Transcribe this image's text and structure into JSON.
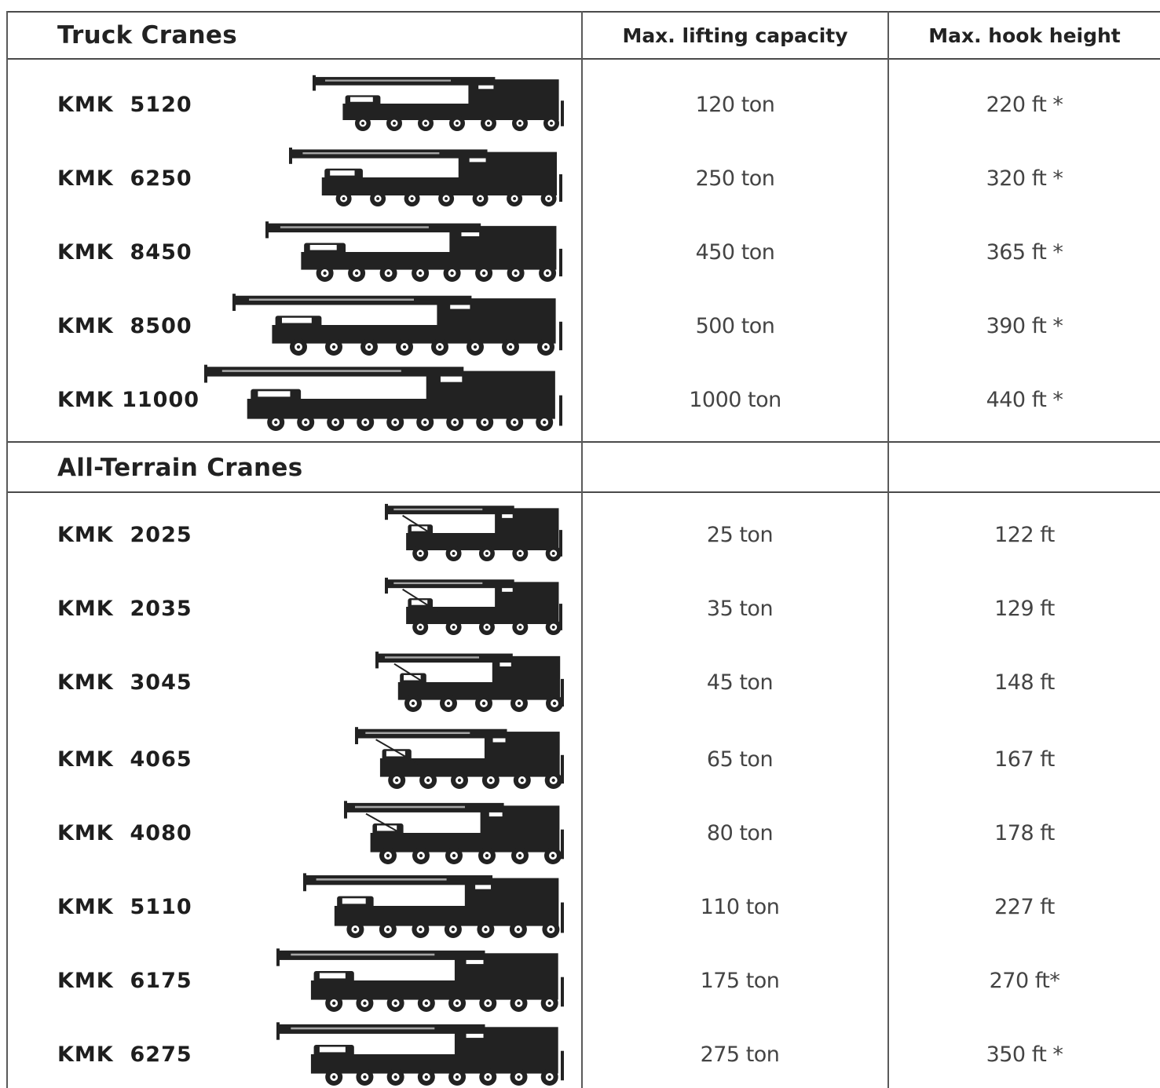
{
  "columns": {
    "capacity_header": "Max. lifting capacity",
    "height_header": "Max. hook height"
  },
  "sections": [
    {
      "title": "Truck Cranes",
      "rows": [
        {
          "model": "KMK  5120",
          "capacity": "120 ton",
          "height": "220 ft *"
        },
        {
          "model": "KMK  6250",
          "capacity": "250 ton",
          "height": "320 ft *"
        },
        {
          "model": "KMK  8450",
          "capacity": "450 ton",
          "height": "365 ft *"
        },
        {
          "model": "KMK  8500",
          "capacity": "500 ton",
          "height": "390 ft *"
        },
        {
          "model": "KMK 11000",
          "capacity": "1000 ton",
          "height": "440 ft *"
        }
      ]
    },
    {
      "title": "All-Terrain Cranes",
      "rows": [
        {
          "model": "KMK  2025",
          "capacity": "25 ton",
          "height": "122 ft"
        },
        {
          "model": "KMK  2035",
          "capacity": "35 ton",
          "height": "129 ft"
        },
        {
          "model": "KMK  3045",
          "capacity": "45 ton",
          "height": "148 ft"
        },
        {
          "model": "KMK  4065",
          "capacity": "65 ton",
          "height": "167 ft"
        },
        {
          "model": "KMK  4080",
          "capacity": "80 ton",
          "height": "178 ft"
        },
        {
          "model": "KMK  5110",
          "capacity": "110 ton",
          "height": "227 ft"
        },
        {
          "model": "KMK  6175",
          "capacity": "175 ton",
          "height": "270 ft*"
        },
        {
          "model": "KMK  6275",
          "capacity": "275 ton",
          "height": "350 ft *"
        }
      ]
    }
  ],
  "icons": {
    "crane": "mobile-crane-silhouette-icon"
  },
  "colors": {
    "ink": "#222222",
    "rule": "#4a4a4a",
    "value_text": "#444444"
  }
}
